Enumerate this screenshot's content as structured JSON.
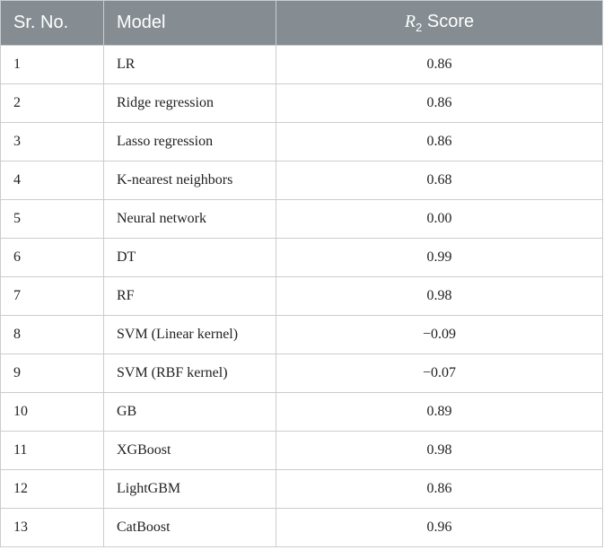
{
  "table": {
    "header": [
      "Sr. No.",
      "Model",
      {
        "symbol": "R",
        "subscript": "2",
        "text": "Score"
      }
    ],
    "rows": [
      [
        1,
        "LR",
        "0.86"
      ],
      [
        2,
        "Ridge regression",
        "0.86"
      ],
      [
        3,
        "Lasso regression",
        "0.86"
      ],
      [
        4,
        "K-nearest neighbors",
        "0.68"
      ],
      [
        5,
        "Neural network",
        "0.00"
      ],
      [
        6,
        "DT",
        "0.99"
      ],
      [
        7,
        "RF",
        "0.98"
      ],
      [
        8,
        "SVM (Linear kernel)",
        "−0.09"
      ],
      [
        9,
        "SVM (RBF kernel)",
        "−0.07"
      ],
      [
        10,
        "GB",
        "0.89"
      ],
      [
        11,
        "XGBoost",
        "0.98"
      ],
      [
        12,
        "LightGBM",
        "0.86"
      ],
      [
        13,
        "CatBoost",
        "0.96"
      ]
    ]
  }
}
